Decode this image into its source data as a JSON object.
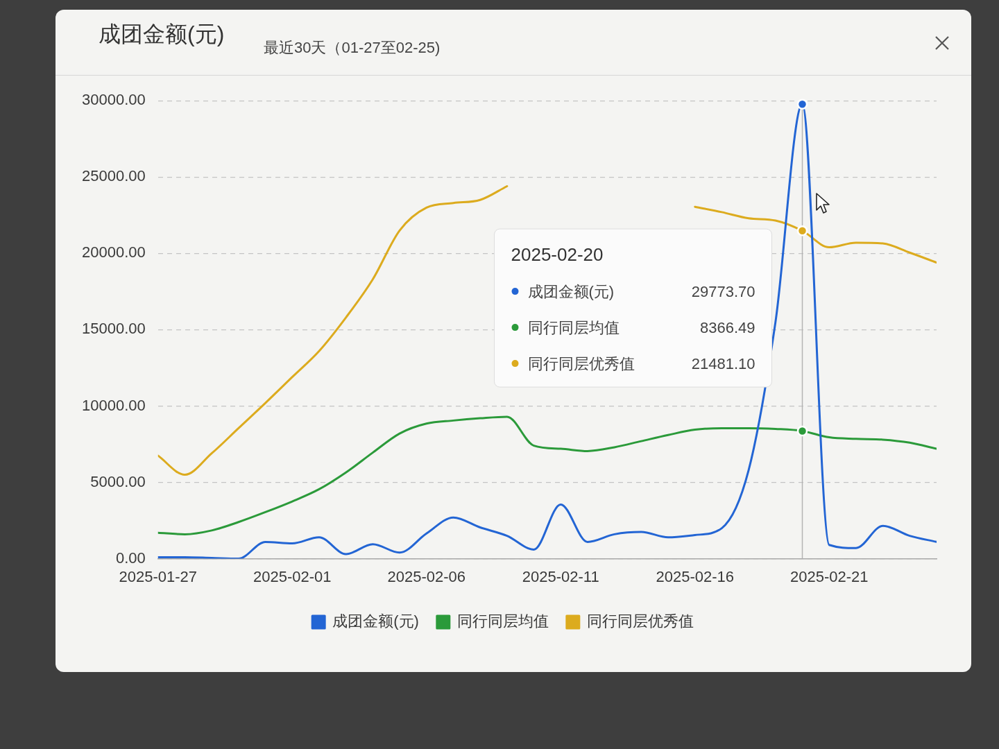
{
  "chart_data": {
    "type": "line",
    "title": "成团金额(元)",
    "subtitle": "最近30天（01-27至02-25)",
    "x": [
      "2025-01-27",
      "2025-01-28",
      "2025-01-29",
      "2025-01-30",
      "2025-01-31",
      "2025-02-01",
      "2025-02-02",
      "2025-02-03",
      "2025-02-04",
      "2025-02-05",
      "2025-02-06",
      "2025-02-07",
      "2025-02-08",
      "2025-02-09",
      "2025-02-10",
      "2025-02-11",
      "2025-02-12",
      "2025-02-13",
      "2025-02-14",
      "2025-02-15",
      "2025-02-16",
      "2025-02-17",
      "2025-02-18",
      "2025-02-19",
      "2025-02-20",
      "2025-02-21",
      "2025-02-22",
      "2025-02-23",
      "2025-02-24",
      "2025-02-25"
    ],
    "series": [
      {
        "name": "成团金额(元)",
        "color": "#2365d4",
        "values": [
          100,
          100,
          50,
          0,
          1100,
          1000,
          1400,
          300,
          950,
          400,
          1650,
          2700,
          2050,
          1500,
          600,
          3550,
          1100,
          1600,
          1750,
          1400,
          1550,
          2000,
          5800,
          15500,
          29773.7,
          900,
          700,
          2150,
          1500,
          1100
        ]
      },
      {
        "name": "同行同层均值",
        "color": "#2b9a3a",
        "values": [
          1700,
          1600,
          1850,
          2400,
          3050,
          3750,
          4550,
          5650,
          6950,
          8200,
          8850,
          9050,
          9200,
          9300,
          7400,
          7200,
          7050,
          7300,
          7700,
          8100,
          8450,
          8550,
          8550,
          8500,
          8366.49,
          7950,
          7850,
          7800,
          7600,
          7200
        ]
      },
      {
        "name": "同行同层优秀值",
        "color": "#dcab1e",
        "values": [
          6750,
          5500,
          6900,
          8550,
          10200,
          11900,
          13600,
          15800,
          18300,
          21500,
          23000,
          23300,
          23500,
          24400,
          null,
          null,
          null,
          null,
          null,
          null,
          23050,
          22700,
          22300,
          22150,
          21481.1,
          20400,
          20700,
          20650,
          20050,
          19400
        ]
      }
    ],
    "xlim": [
      "2025-01-27",
      "2025-02-25"
    ],
    "xticks": [
      "2025-01-27",
      "2025-02-01",
      "2025-02-06",
      "2025-02-11",
      "2025-02-16",
      "2025-02-21"
    ],
    "ylim": [
      0,
      30000
    ],
    "yticks": [
      {
        "value": 0,
        "label": "0.00"
      },
      {
        "value": 5000,
        "label": "5000.00"
      },
      {
        "value": 10000,
        "label": "10000.00"
      },
      {
        "value": 15000,
        "label": "15000.00"
      },
      {
        "value": 20000,
        "label": "20000.00"
      },
      {
        "value": 25000,
        "label": "25000.00"
      },
      {
        "value": 30000,
        "label": "30000.00"
      }
    ],
    "grid": "y",
    "legend": "bottom",
    "marker": "none",
    "line_style": "solid",
    "ref_lines": [
      {
        "axis": "x",
        "value": "2025-02-20",
        "color": "#b4b4b4"
      }
    ],
    "annotations": [
      "2025-02-20",
      "29773.70",
      "8366.49",
      "21481.10"
    ]
  }
}
